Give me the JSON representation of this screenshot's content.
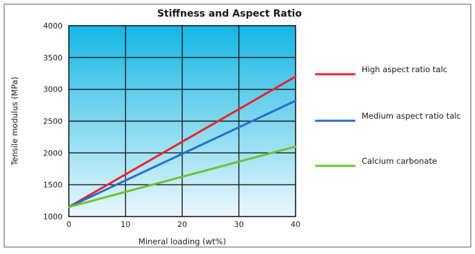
{
  "chart_data": {
    "type": "line",
    "title": "Stiffness and Aspect Ratio",
    "xlabel": "Mineral loading (wt%)",
    "ylabel": "Tensile modulus (MPa)",
    "xlim": [
      0,
      40
    ],
    "ylim": [
      1000,
      4000
    ],
    "x_ticks": [
      "0",
      "10",
      "20",
      "30",
      "40"
    ],
    "y_ticks": [
      "1000",
      "1500",
      "2000",
      "2500",
      "3000",
      "3500",
      "4000"
    ],
    "grid": true,
    "legend_position": "right",
    "series": [
      {
        "name": "High aspect ratio talc",
        "color": "#e8242a",
        "x": [
          0,
          40
        ],
        "y": [
          1150,
          3200
        ]
      },
      {
        "name": "Medium aspect ratio talc",
        "color": "#1f6fd1",
        "x": [
          0,
          40
        ],
        "y": [
          1150,
          2820
        ]
      },
      {
        "name": "Calcium carbonate",
        "color": "#6cc334",
        "x": [
          0,
          40
        ],
        "y": [
          1150,
          2100
        ]
      }
    ]
  }
}
